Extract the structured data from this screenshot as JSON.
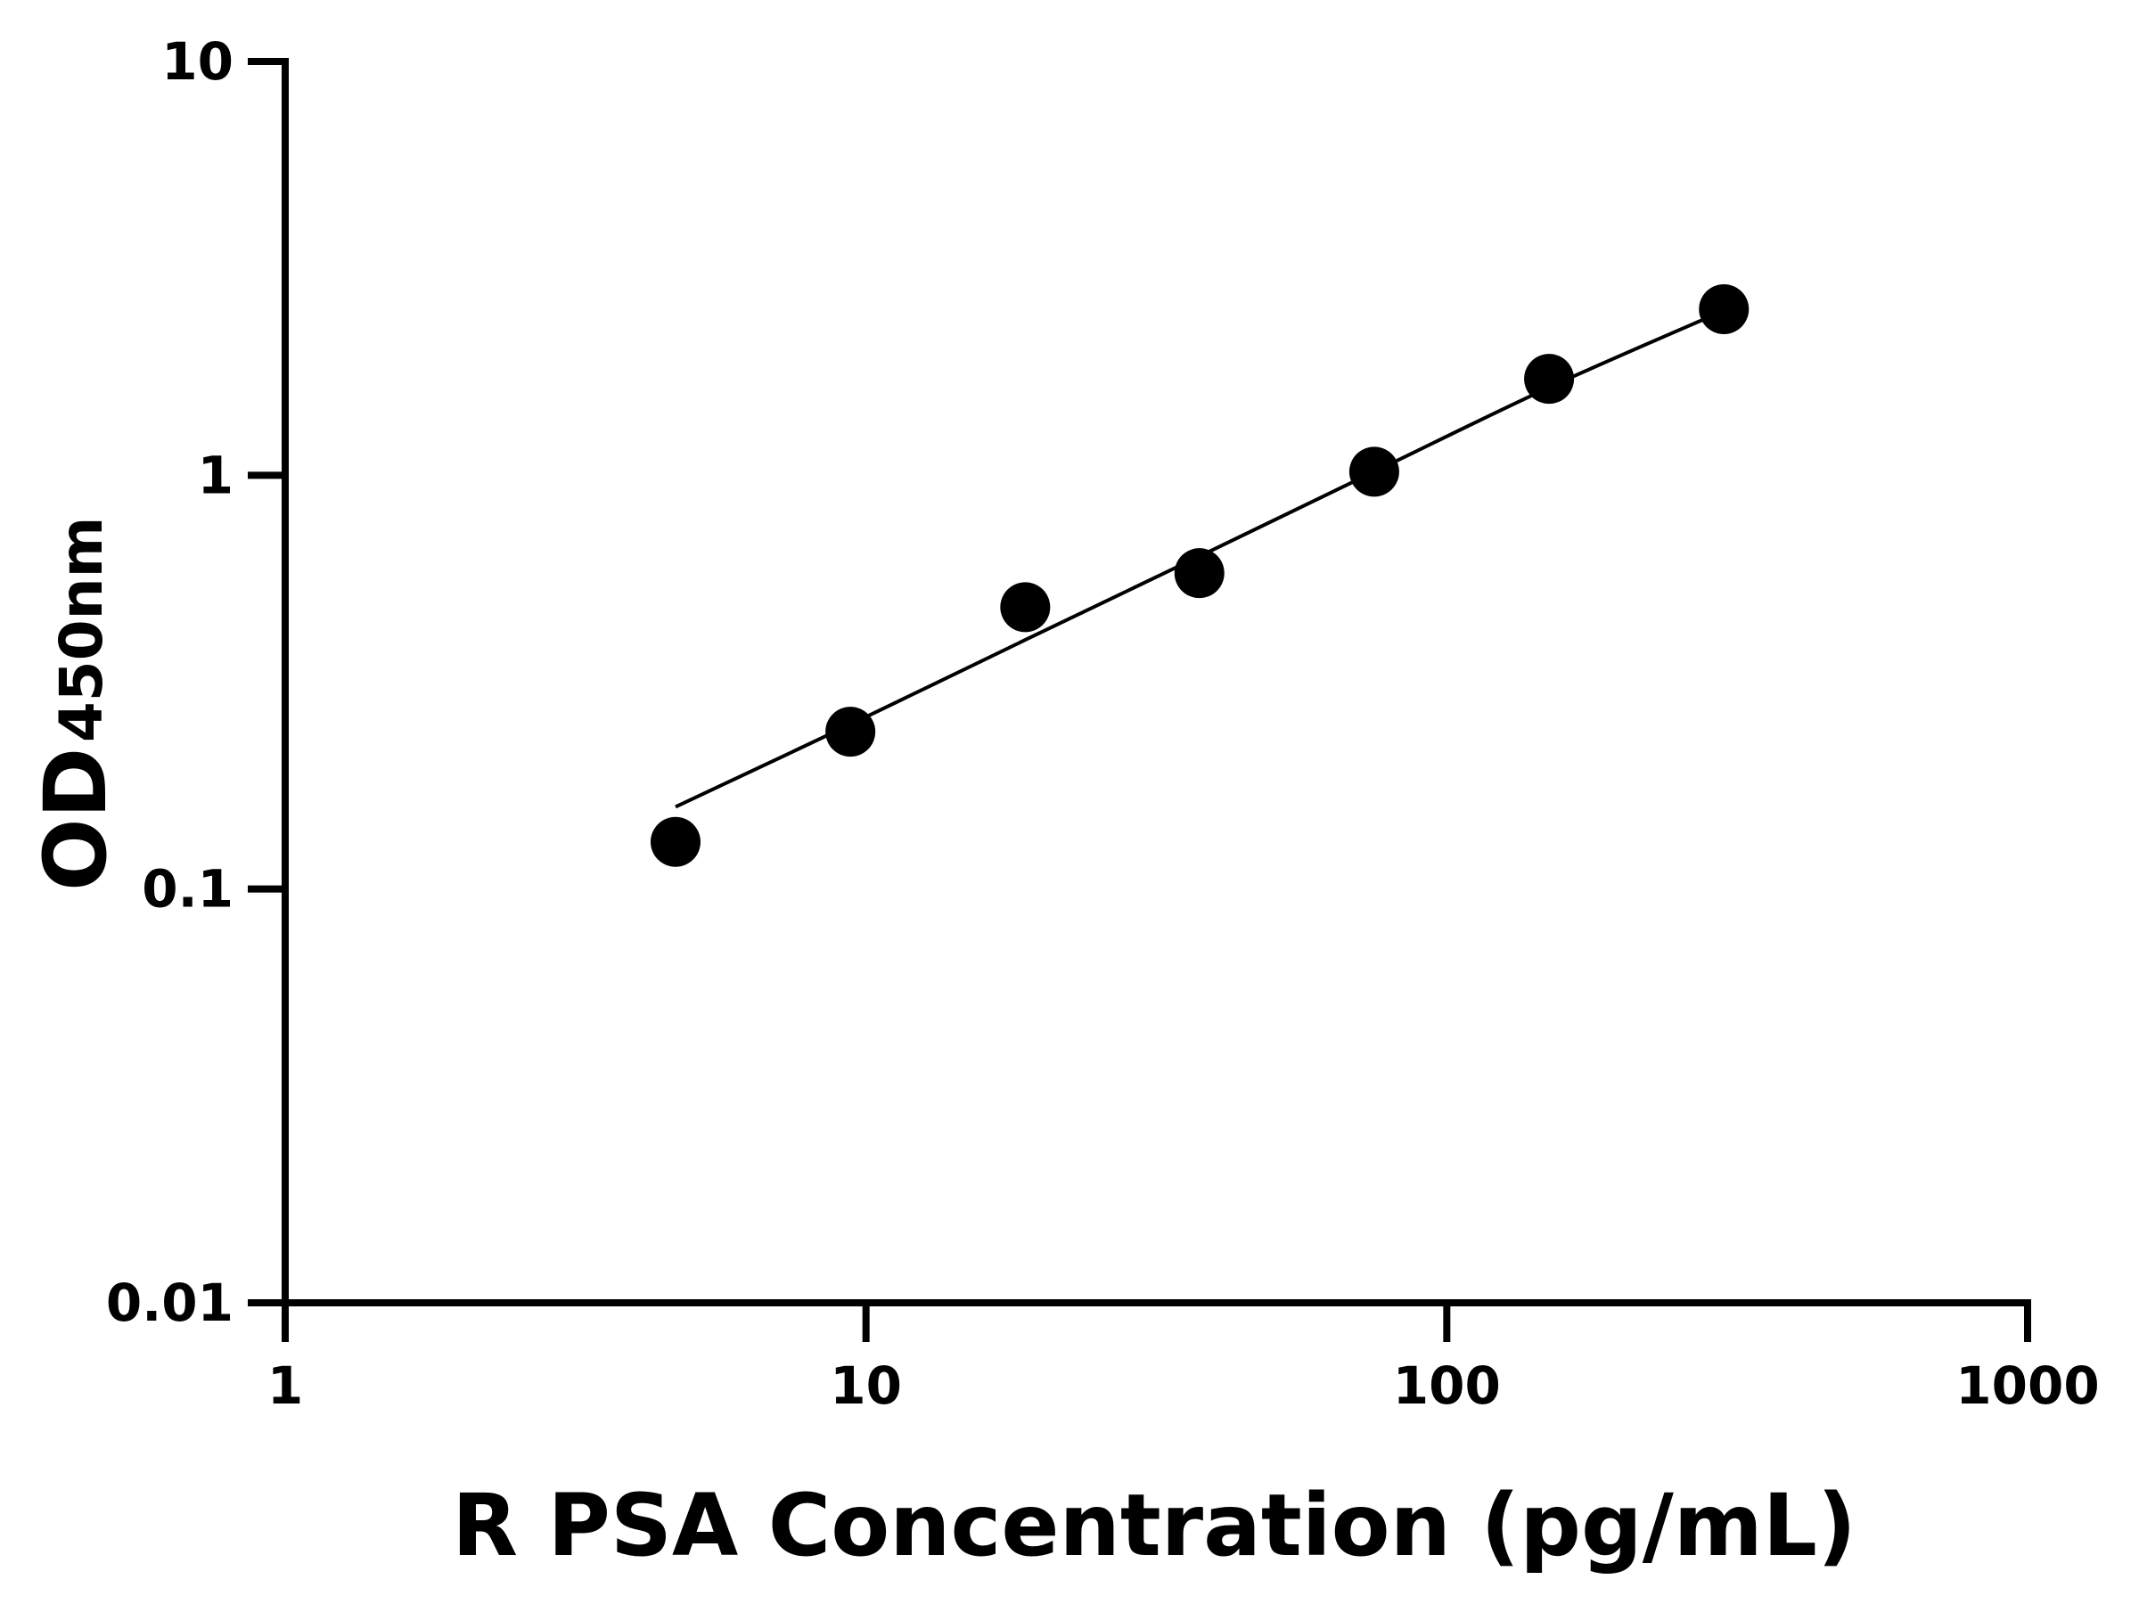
{
  "chart_data": {
    "type": "scatter",
    "title": "",
    "xlabel": "R PSA Concentration (pg/mL)",
    "ylabel": {
      "main": "OD",
      "subscript": "450nm"
    },
    "x_scale": "log",
    "y_scale": "log",
    "xlim": [
      1,
      1000
    ],
    "ylim": [
      0.01,
      10
    ],
    "x_ticks": [
      1,
      10,
      100,
      1000
    ],
    "x_tick_labels": [
      "1",
      "10",
      "100",
      "1000"
    ],
    "y_ticks": [
      0.01,
      0.1,
      1,
      10
    ],
    "y_tick_labels": [
      "0.01",
      "0.1",
      "1",
      "10"
    ],
    "grid": false,
    "colors": {
      "axis": "#000000",
      "points": "#000000",
      "curve": "#000000"
    },
    "series": [
      {
        "points": [
          {
            "x": 4.7,
            "y": 0.13
          },
          {
            "x": 9.4,
            "y": 0.24
          },
          {
            "x": 18.8,
            "y": 0.48
          },
          {
            "x": 37.5,
            "y": 0.58
          },
          {
            "x": 75,
            "y": 1.02
          },
          {
            "x": 150,
            "y": 1.71
          },
          {
            "x": 300,
            "y": 2.52
          }
        ]
      }
    ],
    "fit_curve": {
      "x": [
        4.7,
        9.4,
        18.8,
        37.5,
        75,
        150,
        300
      ],
      "y": [
        0.158,
        0.25,
        0.4,
        0.637,
        1.02,
        1.63,
        2.5
      ]
    }
  }
}
